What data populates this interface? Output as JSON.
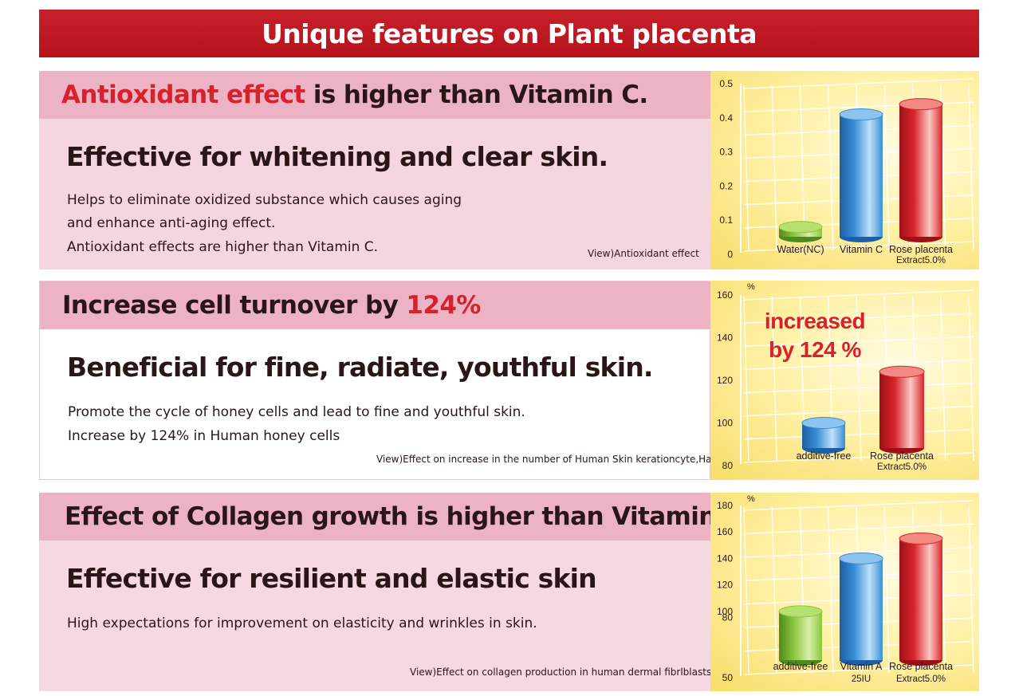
{
  "banner": {
    "title": "Unique features on Plant placenta"
  },
  "sections": [
    {
      "headline_red": "Antioxidant effect",
      "headline_rest": " is higher than Vitamin C.",
      "subhead": "Effective for whitening and clear skin.",
      "lines": [
        "Helps to eliminate oxidized substance which causes aging",
        "and enhance anti-aging effect.",
        "Antioxidant effects are higher than Vitamin C."
      ],
      "note": "View)Antioxidant effect"
    },
    {
      "headline_pre": "Increase cell turnover by ",
      "headline_red": "124%",
      "subhead": "Beneficial for fine, radiate, youthful skin.",
      "lines": [
        "Promote the cycle of honey cells and lead to fine and youthful skin.",
        "Increase by 124% in Human honey cells"
      ],
      "note": "View)Effect on increase in the number of Human Skin kerationcyte,HaCat"
    },
    {
      "headline": "Effect of Collagen growth is higher than Vitamin A.",
      "subhead": "Effective for resilient and elastic skin",
      "lines": [
        "High expectations for improvement on elasticity and wrinkles in skin."
      ],
      "note": "View)Effect on collagen production in human dermal fibrlblasts"
    }
  ],
  "colors": {
    "banner_red": "#c8202a",
    "headline_pink": "#ebb3c4",
    "panel_pink": "#f5d6e0",
    "accent_red": "#d7212c",
    "bar_green": "#8cc63f",
    "bar_blue": "#3a8fd6",
    "bar_red": "#d8262c",
    "chart_bg": "#fff1a8"
  },
  "chart_data": [
    {
      "type": "bar",
      "unit": "",
      "ylim": [
        0,
        0.5
      ],
      "yticks": [
        "0.5",
        "0.4",
        "0.3",
        "0.2",
        "0.1",
        "0"
      ],
      "categories": [
        {
          "label": [
            "Water(NC)"
          ],
          "value": 0.08,
          "color": "green"
        },
        {
          "label": [
            "Vitamin C"
          ],
          "value": 0.41,
          "color": "blue"
        },
        {
          "label": [
            "Rose placenta",
            "Extract5.0%"
          ],
          "value": 0.44,
          "color": "red"
        }
      ],
      "annotation": []
    },
    {
      "type": "bar",
      "unit": "%",
      "ylim": [
        80,
        160
      ],
      "yticks": [
        "160",
        "140",
        "120",
        "100",
        "80"
      ],
      "categories": [
        {
          "label": [
            "additive-free"
          ],
          "value": 100,
          "color": "blue"
        },
        {
          "label": [
            "Rose placenta",
            "Extract5.0%"
          ],
          "value": 124,
          "color": "red"
        }
      ],
      "annotation": [
        "increased",
        "by 124 %"
      ]
    },
    {
      "type": "bar",
      "unit": "%",
      "ylim": [
        50,
        180
      ],
      "yticks": [
        "180",
        "160",
        "140",
        "120",
        "100",
        "80",
        "50"
      ],
      "categories": [
        {
          "label": [
            "additive-free"
          ],
          "value": 100,
          "color": "green"
        },
        {
          "label": [
            "Vitamin A",
            "25IU"
          ],
          "value": 140,
          "color": "blue"
        },
        {
          "label": [
            "Rose placenta",
            "Extract5.0%"
          ],
          "value": 155,
          "color": "red"
        }
      ],
      "annotation": []
    }
  ]
}
